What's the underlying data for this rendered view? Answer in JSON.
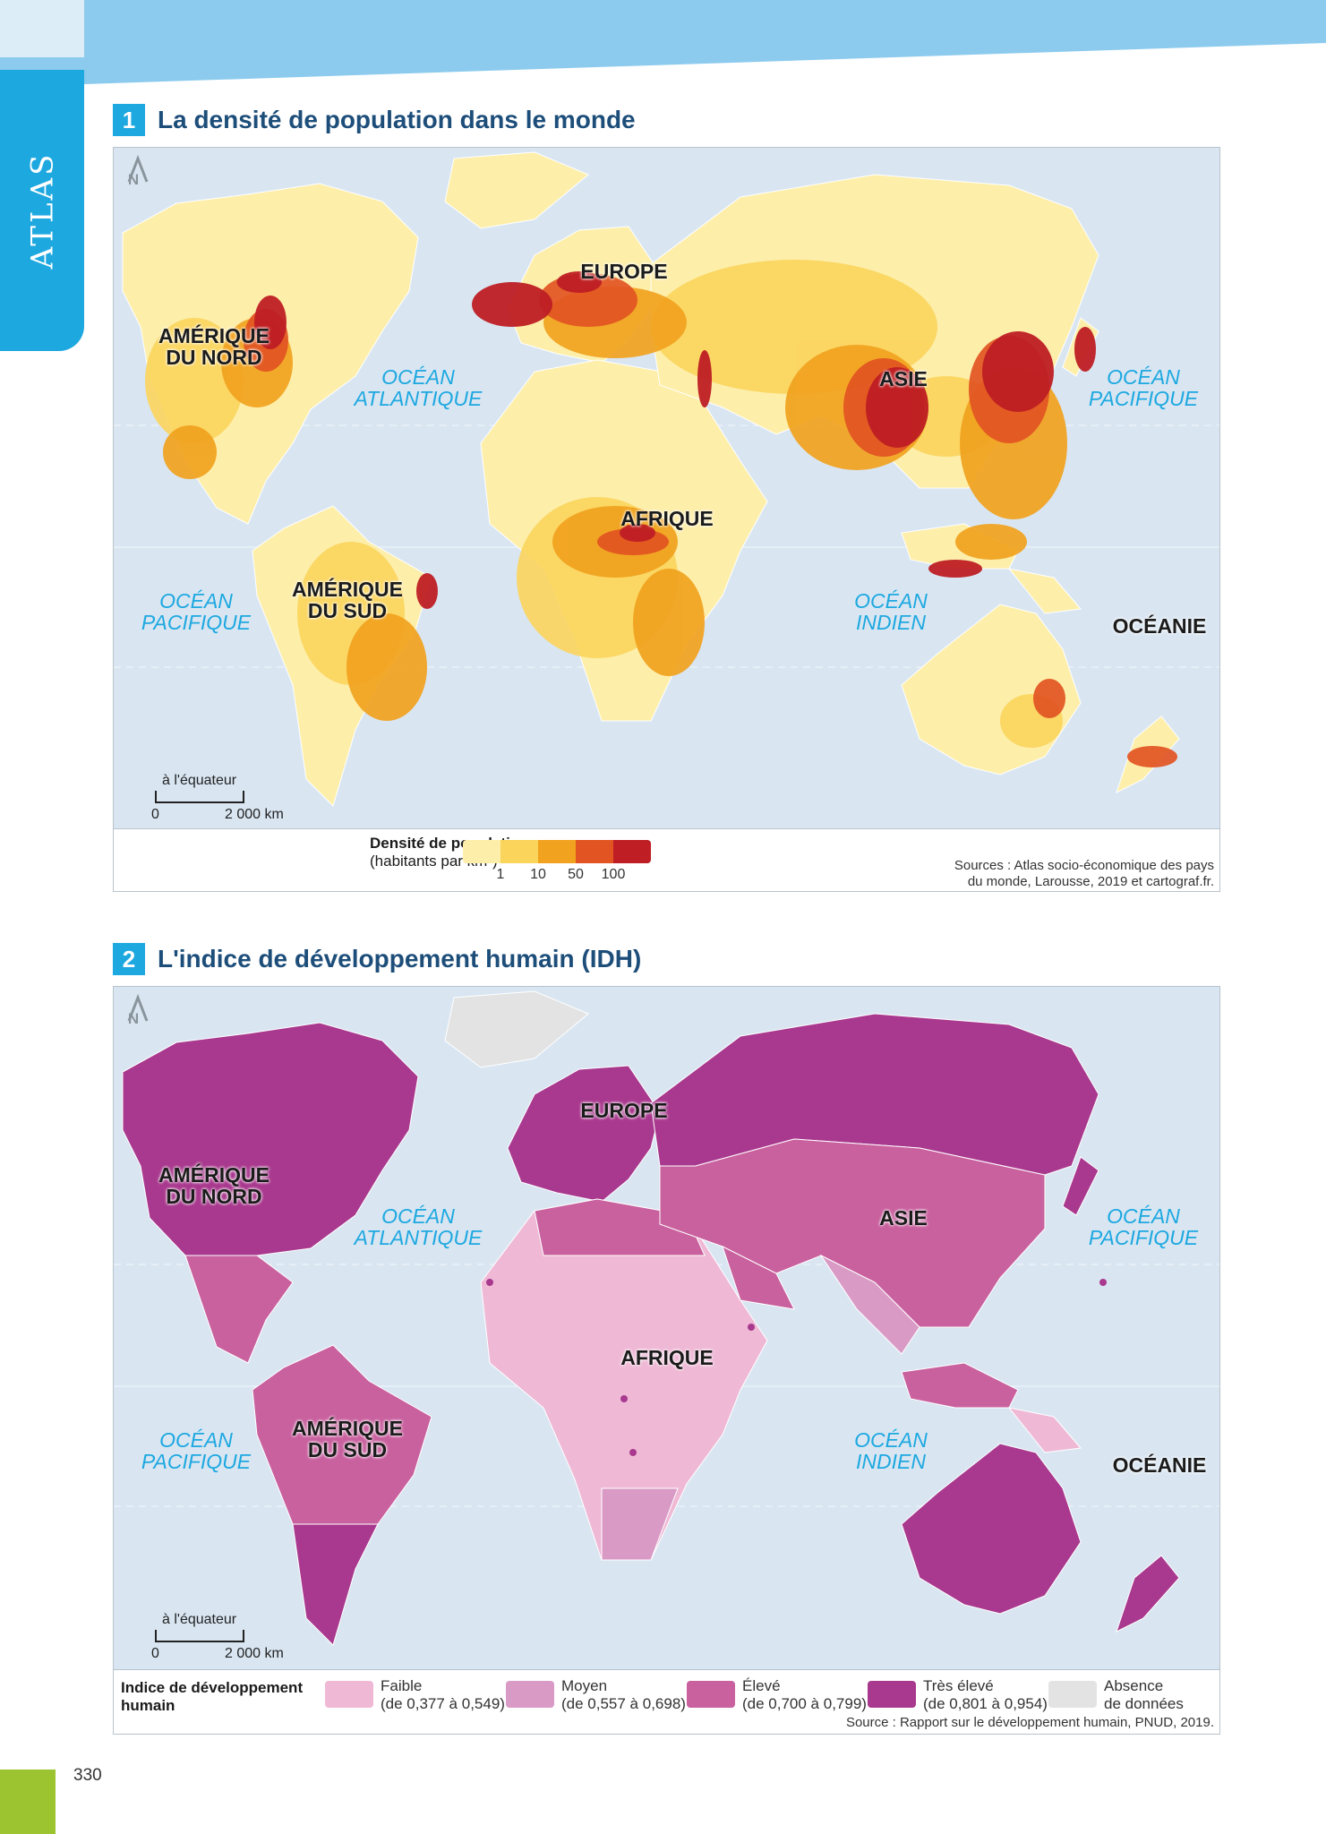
{
  "page": {
    "side_tab": "ATLAS",
    "page_number": "330",
    "colors": {
      "blue": "#1ea8e0",
      "light_blue": "#8ccbee",
      "green": "#9cc431",
      "title": "#1d4e7a"
    }
  },
  "map1": {
    "number": "1",
    "title": "La densité de population dans le monde",
    "north": "N",
    "scale": {
      "caption": "à l'équateur",
      "start": "0",
      "end": "2 000 km"
    },
    "continents": {
      "amerique_nord": "AMÉRIQUE\nDU NORD",
      "europe": "EUROPE",
      "asie": "ASIE",
      "afrique": "AFRIQUE",
      "amerique_sud": "AMÉRIQUE\nDU SUD",
      "oceanie": "OCÉANIE"
    },
    "oceans": {
      "atlantique": "OCÉAN\nATLANTIQUE",
      "pacifique_est": "OCÉAN\nPACIFIQUE",
      "pacifique_ouest": "OCÉAN\nPACIFIQUE",
      "indien": "OCÉAN\nINDIEN"
    },
    "legend": {
      "title": "Densité de population",
      "subtitle": "(habitants par km²)",
      "colors": [
        "#fdeea9",
        "#fbd45c",
        "#f1a21e",
        "#e25422",
        "#be1e24"
      ],
      "ticks": [
        "1",
        "10",
        "50",
        "100"
      ]
    },
    "source_line1": "Sources : Atlas socio-économique des pays",
    "source_line2": "du monde, Larousse, 2019 et cartograf.fr."
  },
  "map2": {
    "number": "2",
    "title": "L'indice de développement humain (IDH)",
    "north": "N",
    "scale": {
      "caption": "à l'équateur",
      "start": "0",
      "end": "2 000 km"
    },
    "continents": {
      "amerique_nord": "AMÉRIQUE\nDU NORD",
      "europe": "EUROPE",
      "asie": "ASIE",
      "afrique": "AFRIQUE",
      "amerique_sud": "AMÉRIQUE\nDU SUD",
      "oceanie": "OCÉANIE"
    },
    "oceans": {
      "atlantique": "OCÉAN\nATLANTIQUE",
      "pacifique_est": "OCÉAN\nPACIFIQUE",
      "pacifique_ouest": "OCÉAN\nPACIFIQUE",
      "indien": "OCÉAN\nINDIEN"
    },
    "legend": {
      "title": "Indice de développement\nhumain",
      "items": [
        {
          "label": "Faible\n(de 0,377 à 0,549)",
          "color": "#efb9d6"
        },
        {
          "label": "Moyen\n(de 0,557 à 0,698)",
          "color": "#d99bc6"
        },
        {
          "label": "Élevé\n(de 0,700 à 0,799)",
          "color": "#c9619f"
        },
        {
          "label": "Très élevé\n(de 0,801 à 0,954)",
          "color": "#a9398e"
        },
        {
          "label": "Absence\nde données",
          "color": "#e3e3e3"
        }
      ]
    },
    "source": "Source : Rapport sur le développement humain, PNUD, 2019."
  }
}
